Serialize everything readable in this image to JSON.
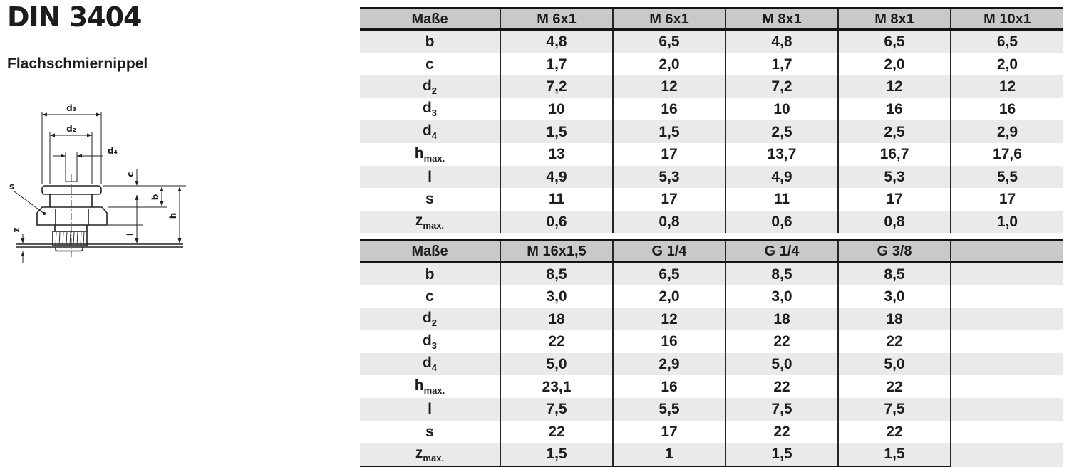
{
  "header": {
    "title": "DIN 3404",
    "subtitle": "Flachschmiernippel"
  },
  "drawing": {
    "labels": {
      "d3": "d₃",
      "d2": "d₂",
      "d4": "d₄",
      "c": "c",
      "b": "b",
      "h": "h",
      "l": "l",
      "s": "s",
      "z": "z"
    }
  },
  "tables": [
    {
      "col_header_label": "Maße",
      "columns": [
        "M 6x1",
        "M 6x1",
        "M 8x1",
        "M 8x1",
        "M 10x1"
      ],
      "rows": [
        {
          "label": {
            "base": "b",
            "sub": ""
          },
          "values": [
            "4,8",
            "6,5",
            "4,8",
            "6,5",
            "6,5"
          ]
        },
        {
          "label": {
            "base": "c",
            "sub": ""
          },
          "values": [
            "1,7",
            "2,0",
            "1,7",
            "2,0",
            "2,0"
          ]
        },
        {
          "label": {
            "base": "d",
            "sub": "2"
          },
          "values": [
            "7,2",
            "12",
            "7,2",
            "12",
            "12"
          ]
        },
        {
          "label": {
            "base": "d",
            "sub": "3"
          },
          "values": [
            "10",
            "16",
            "10",
            "16",
            "16"
          ]
        },
        {
          "label": {
            "base": "d",
            "sub": "4"
          },
          "values": [
            "1,5",
            "1,5",
            "2,5",
            "2,5",
            "2,9"
          ]
        },
        {
          "label": {
            "base": "h",
            "sub": "max."
          },
          "values": [
            "13",
            "17",
            "13,7",
            "16,7",
            "17,6"
          ]
        },
        {
          "label": {
            "base": "l",
            "sub": ""
          },
          "values": [
            "4,9",
            "5,3",
            "4,9",
            "5,3",
            "5,5"
          ]
        },
        {
          "label": {
            "base": "s",
            "sub": ""
          },
          "values": [
            "11",
            "17",
            "11",
            "17",
            "17"
          ]
        },
        {
          "label": {
            "base": "z",
            "sub": "max."
          },
          "values": [
            "0,6",
            "0,8",
            "0,6",
            "0,8",
            "1,0"
          ]
        }
      ]
    },
    {
      "col_header_label": "Maße",
      "columns": [
        "M 16x1,5",
        "G 1/4",
        "G 1/4",
        "G 3/8",
        ""
      ],
      "rows": [
        {
          "label": {
            "base": "b",
            "sub": ""
          },
          "values": [
            "8,5",
            "6,5",
            "8,5",
            "8,5",
            ""
          ]
        },
        {
          "label": {
            "base": "c",
            "sub": ""
          },
          "values": [
            "3,0",
            "2,0",
            "3,0",
            "3,0",
            ""
          ]
        },
        {
          "label": {
            "base": "d",
            "sub": "2"
          },
          "values": [
            "18",
            "12",
            "18",
            "18",
            ""
          ]
        },
        {
          "label": {
            "base": "d",
            "sub": "3"
          },
          "values": [
            "22",
            "16",
            "22",
            "22",
            ""
          ]
        },
        {
          "label": {
            "base": "d",
            "sub": "4"
          },
          "values": [
            "5,0",
            "2,9",
            "5,0",
            "5,0",
            ""
          ]
        },
        {
          "label": {
            "base": "h",
            "sub": "max."
          },
          "values": [
            "23,1",
            "16",
            "22",
            "22",
            ""
          ]
        },
        {
          "label": {
            "base": "l",
            "sub": ""
          },
          "values": [
            "7,5",
            "5,5",
            "7,5",
            "7,5",
            ""
          ]
        },
        {
          "label": {
            "base": "s",
            "sub": ""
          },
          "values": [
            "22",
            "17",
            "22",
            "22",
            ""
          ]
        },
        {
          "label": {
            "base": "z",
            "sub": "max."
          },
          "values": [
            "1,5",
            "1",
            "1,5",
            "1,5",
            ""
          ]
        }
      ]
    }
  ]
}
